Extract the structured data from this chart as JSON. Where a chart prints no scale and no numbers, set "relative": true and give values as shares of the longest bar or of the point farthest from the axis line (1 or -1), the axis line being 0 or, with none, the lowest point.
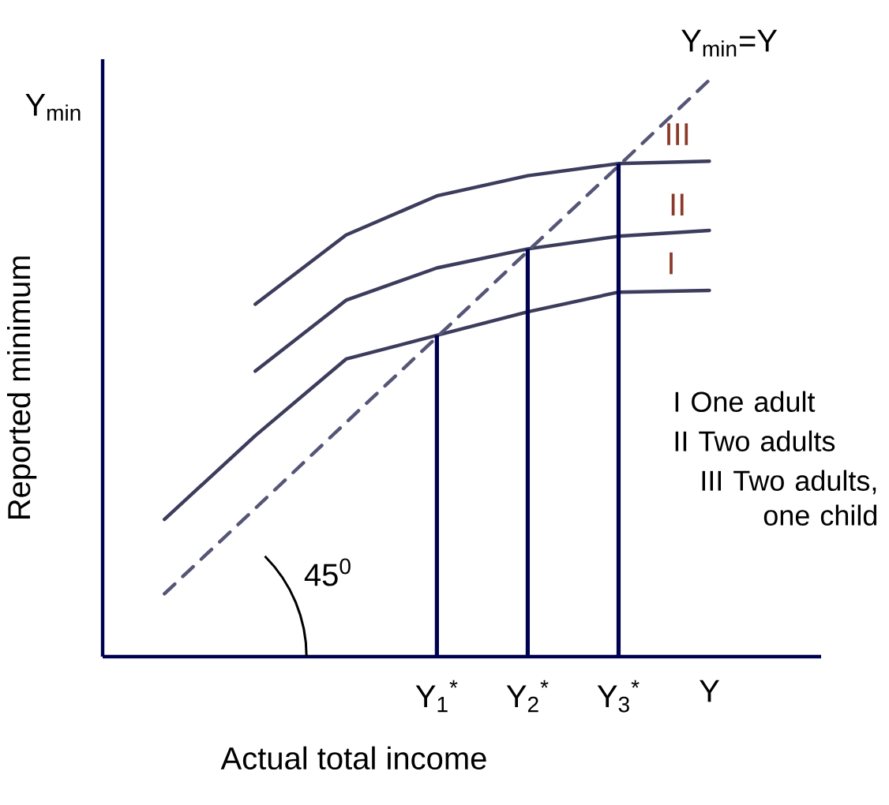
{
  "chart_data": {
    "type": "line",
    "relative": true,
    "xlabel": "Actual total income",
    "ylabel": "Reported minimum",
    "categories": [
      null,
      null,
      null,
      "Y$_{1}$$^{*}$",
      "Y$_{2}$$^{*}$",
      "Y$_{3}$$^{*}$",
      "Y"
    ],
    "series": [
      {
        "name": "I",
        "color": "#3c3c5c",
        "values": [
          0.238,
          0.383,
          0.516,
          0.557,
          0.598,
          0.632,
          0.635
        ]
      },
      {
        "name": "II",
        "color": "#3c3c5c",
        "values": [
          null,
          0.495,
          0.618,
          0.674,
          0.707,
          0.729,
          0.739
        ]
      },
      {
        "name": "III",
        "color": "#3c3c5c",
        "values": [
          null,
          0.611,
          0.731,
          0.799,
          0.834,
          0.855,
          0.859
        ]
      },
      {
        "color": "#555577",
        "line_style": "dashed",
        "values": [
          0.109,
          0.257,
          0.406,
          0.554,
          0.703,
          0.851,
          1.0
        ]
      },
      {
        "type": "bar",
        "color": "#000050",
        "values": [
          null,
          null,
          null,
          0.557,
          0.707,
          0.855,
          null
        ]
      }
    ],
    "annotations": [
      "Y$_{min}$",
      {
        "text": "Y$_{min}$=Y",
        "x": "Y",
        "y": 1.0
      },
      "45$^{0}$",
      "I One adult",
      "II Two adults",
      "III Two adults, one child"
    ]
  }
}
